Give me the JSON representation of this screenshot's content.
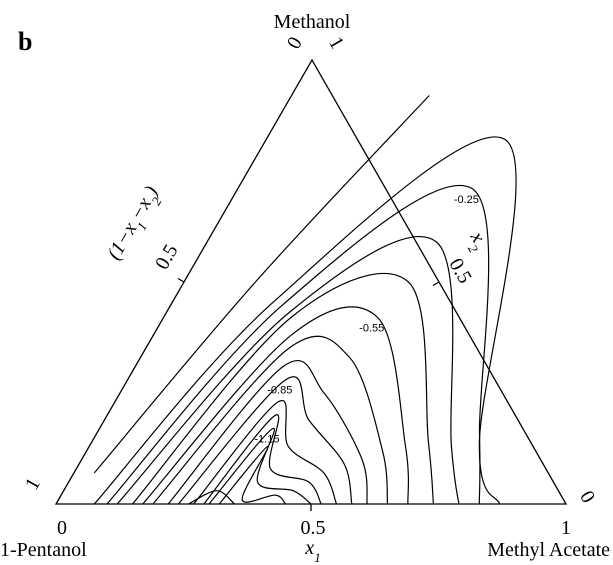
{
  "chart_data": {
    "type": "ternary-contour",
    "panel_label": "b",
    "vertices": {
      "top": "Methanol",
      "bottom_left": "1-Pentanol",
      "bottom_right": "Methyl Acetate"
    },
    "axes": {
      "bottom": {
        "label_main": "x",
        "label_sub": "1",
        "ticks": [
          "0",
          "0.5",
          "1"
        ]
      },
      "right": {
        "label_main": "x",
        "label_sub": "2",
        "ticks": [
          "0",
          "0.5",
          "1"
        ]
      },
      "left": {
        "label_parts": [
          {
            "t": "(1",
            "sub": false
          },
          {
            "t": "−x",
            "sub": false
          },
          {
            "t": "1",
            "sub": true
          },
          {
            "t": "−x",
            "sub": false
          },
          {
            "t": "2",
            "sub": true
          },
          {
            "t": ")",
            "sub": false
          }
        ],
        "ticks": [
          "1",
          "0.5",
          "0"
        ]
      }
    },
    "contour_levels": [
      -0.05,
      -0.15,
      -0.25,
      -0.35,
      -0.45,
      -0.55,
      -0.65,
      -0.75,
      -0.85,
      -0.95,
      -1.05,
      -1.15,
      -1.25,
      -1.35
    ],
    "labeled_levels": [
      "-0.25",
      "-0.55",
      "-0.85",
      "-1.15"
    ],
    "contour_curves": [
      {
        "level": -0.05,
        "points": [
          [
            0.04,
            0.07
          ],
          [
            0.14,
            0.5
          ],
          [
            0.27,
            0.92
          ]
        ]
      },
      {
        "level": -0.15,
        "points": [
          [
            0.075,
            0.0
          ],
          [
            0.2,
            0.46
          ],
          [
            0.47,
            0.82
          ],
          [
            0.76,
            0.14
          ],
          [
            0.87,
            0.0
          ]
        ]
      },
      {
        "level": -0.25,
        "points": [
          [
            0.1,
            0.0
          ],
          [
            0.22,
            0.45
          ],
          [
            0.46,
            0.71
          ],
          [
            0.75,
            0.16
          ],
          [
            0.83,
            0.0
          ]
        ]
      },
      {
        "level": -0.35,
        "points": [
          [
            0.12,
            0.0
          ],
          [
            0.24,
            0.43
          ],
          [
            0.45,
            0.59
          ],
          [
            0.71,
            0.13
          ],
          [
            0.79,
            0.0
          ]
        ]
      },
      {
        "level": -0.45,
        "points": [
          [
            0.15,
            0.0
          ],
          [
            0.25,
            0.42
          ],
          [
            0.44,
            0.5
          ],
          [
            0.66,
            0.14
          ],
          [
            0.74,
            0.0
          ]
        ]
      },
      {
        "level": -0.55,
        "points": [
          [
            0.17,
            0.0
          ],
          [
            0.27,
            0.38
          ],
          [
            0.42,
            0.42
          ],
          [
            0.62,
            0.13
          ],
          [
            0.69,
            0.0
          ]
        ]
      },
      {
        "level": -0.65,
        "points": [
          [
            0.19,
            0.0
          ],
          [
            0.28,
            0.35
          ],
          [
            0.41,
            0.33
          ],
          [
            0.58,
            0.12
          ],
          [
            0.65,
            0.0
          ]
        ]
      },
      {
        "level": -0.75,
        "points": [
          [
            0.22,
            0.0
          ],
          [
            0.29,
            0.31
          ],
          [
            0.4,
            0.25
          ],
          [
            0.55,
            0.1
          ],
          [
            0.61,
            0.0
          ]
        ]
      },
      {
        "level": -0.85,
        "points": [
          [
            0.24,
            0.0
          ],
          [
            0.31,
            0.28
          ],
          [
            0.4,
            0.19
          ],
          [
            0.52,
            0.09
          ],
          [
            0.58,
            0.0
          ]
        ]
      },
      {
        "level": -0.95,
        "points": [
          [
            0.27,
            0.0
          ],
          [
            0.32,
            0.23
          ],
          [
            0.39,
            0.13
          ],
          [
            0.49,
            0.07
          ],
          [
            0.55,
            0.0
          ]
        ]
      },
      {
        "level": -1.05,
        "points": [
          [
            0.29,
            0.0
          ],
          [
            0.33,
            0.2
          ],
          [
            0.38,
            0.08
          ],
          [
            0.47,
            0.05
          ],
          [
            0.52,
            0.0
          ]
        ]
      },
      {
        "level": -1.15,
        "points": [
          [
            0.3,
            0.0
          ],
          [
            0.34,
            0.17
          ],
          [
            0.37,
            0.05
          ],
          [
            0.45,
            0.03
          ],
          [
            0.5,
            0.0
          ]
        ]
      },
      {
        "level": -1.25,
        "points": [
          [
            0.32,
            0.0
          ],
          [
            0.35,
            0.13
          ],
          [
            0.36,
            0.01
          ],
          [
            0.42,
            0.02
          ],
          [
            0.45,
            0.0
          ]
        ]
      },
      {
        "level": -1.35,
        "points": [
          [
            0.26,
            0.0
          ],
          [
            0.3,
            0.03
          ],
          [
            0.35,
            0.0
          ]
        ]
      }
    ]
  }
}
